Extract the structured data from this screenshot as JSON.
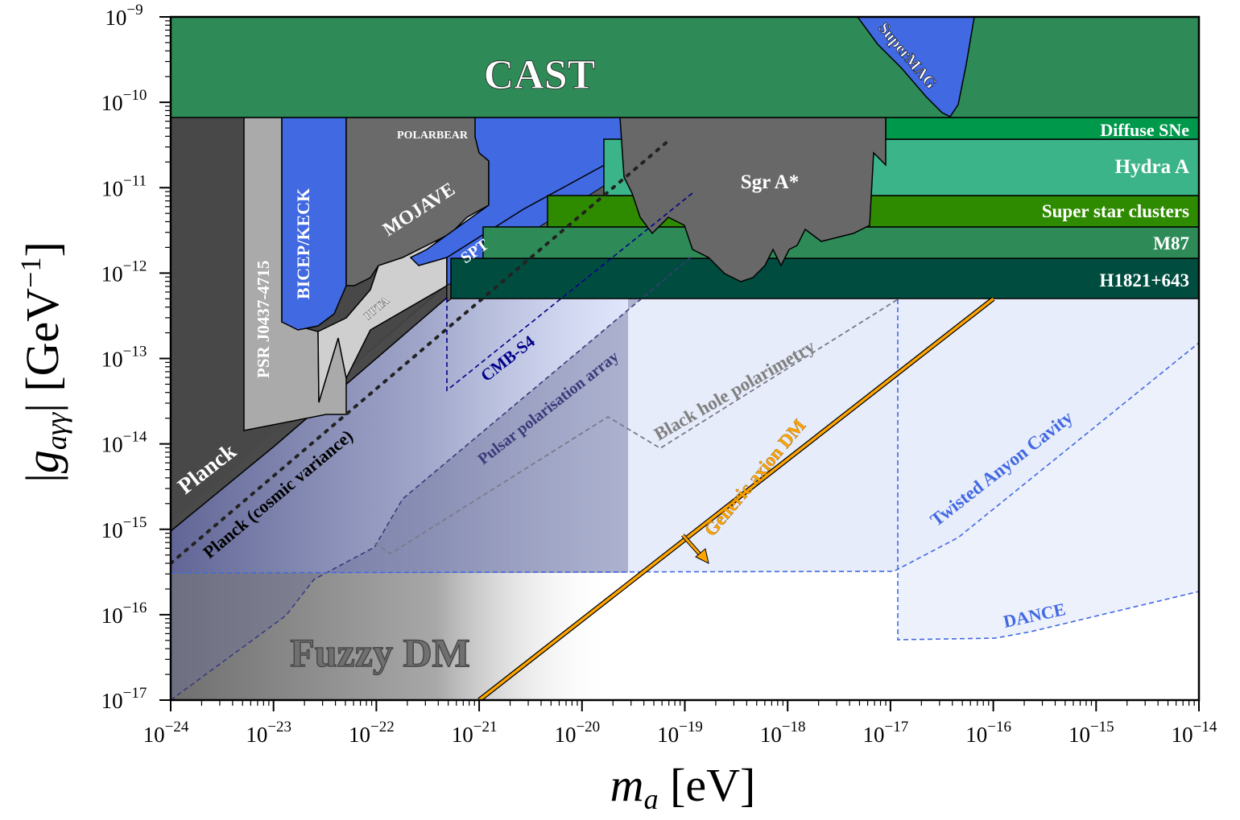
{
  "chart_data": {
    "type": "area",
    "title": "",
    "xlabel": "m_a [eV]",
    "ylabel": "|g_aγγ| [GeV^-1]",
    "xscale": "log",
    "yscale": "log",
    "xlim_exp": [
      -24,
      -14
    ],
    "ylim_exp": [
      -17,
      -9
    ],
    "x_tick_exponents": [
      "-24",
      "-23",
      "-22",
      "-21",
      "-20",
      "-19",
      "-18",
      "-17",
      "-16",
      "-15",
      "-14"
    ],
    "y_tick_exponents": [
      "-9",
      "-10",
      "-11",
      "-12",
      "-13",
      "-14",
      "-15",
      "-16",
      "-17"
    ],
    "tick_base": "10",
    "regions": [
      {
        "name": "CAST",
        "color": "#2e8b57",
        "x_range_log": [
          -24,
          -14
        ],
        "g_range_log": [
          -10.18,
          -9
        ]
      },
      {
        "name": "SuperMAG",
        "color": "#4169e1"
      },
      {
        "name": "Diffuse SNe",
        "color": "#00994c",
        "g_range_log": [
          -10.42,
          -10.18
        ]
      },
      {
        "name": "Hydra A",
        "color": "#3cb48a",
        "g_range_log": [
          -11.08,
          -10.42
        ]
      },
      {
        "name": "Super star clusters",
        "color": "#2e8b00",
        "g_range_log": [
          -11.44,
          -11.08
        ]
      },
      {
        "name": "M87",
        "color": "#2e8b57",
        "g_range_log": [
          -11.8,
          -11.44
        ]
      },
      {
        "name": "H1821+643",
        "color": "#004d40",
        "g_range_log": [
          -12.3,
          -11.8
        ]
      },
      {
        "name": "Sgr A*",
        "color": "#686868"
      },
      {
        "name": "POLARBEAR",
        "color": "#4169e1"
      },
      {
        "name": "MOJAVE",
        "color": "#686868"
      },
      {
        "name": "BICEP/KECK",
        "color": "#4169e1"
      },
      {
        "name": "PSR J0437-4715",
        "color": "#aaaaaa"
      },
      {
        "name": "PPTA",
        "color": "#cccccc"
      },
      {
        "name": "SPT",
        "color": "#4169e1"
      },
      {
        "name": "Planck",
        "color": "#4a4a4a"
      },
      {
        "name": "Fuzzy DM",
        "color": "#808080"
      }
    ],
    "projections": [
      {
        "name": "Planck (cosmic variance)",
        "style": "dotted",
        "color": "#222222"
      },
      {
        "name": "CMB-S4",
        "style": "dashed",
        "color": "#00008b"
      },
      {
        "name": "Pulsar polarisation array",
        "style": "dashed",
        "color": "#3b3b7a"
      },
      {
        "name": "Black hole polarimetry",
        "style": "dashed",
        "color": "#808080"
      },
      {
        "name": "Twisted Anyon Cavity",
        "style": "dashed",
        "color": "#4169e1"
      },
      {
        "name": "DANCE",
        "style": "dashed",
        "color": "#4169e1"
      }
    ],
    "theory": [
      {
        "name": "Generic axion DM",
        "color": "#ffa500",
        "points_log": [
          [
            -21,
            -17
          ],
          [
            -16,
            -12.3
          ]
        ]
      }
    ]
  }
}
